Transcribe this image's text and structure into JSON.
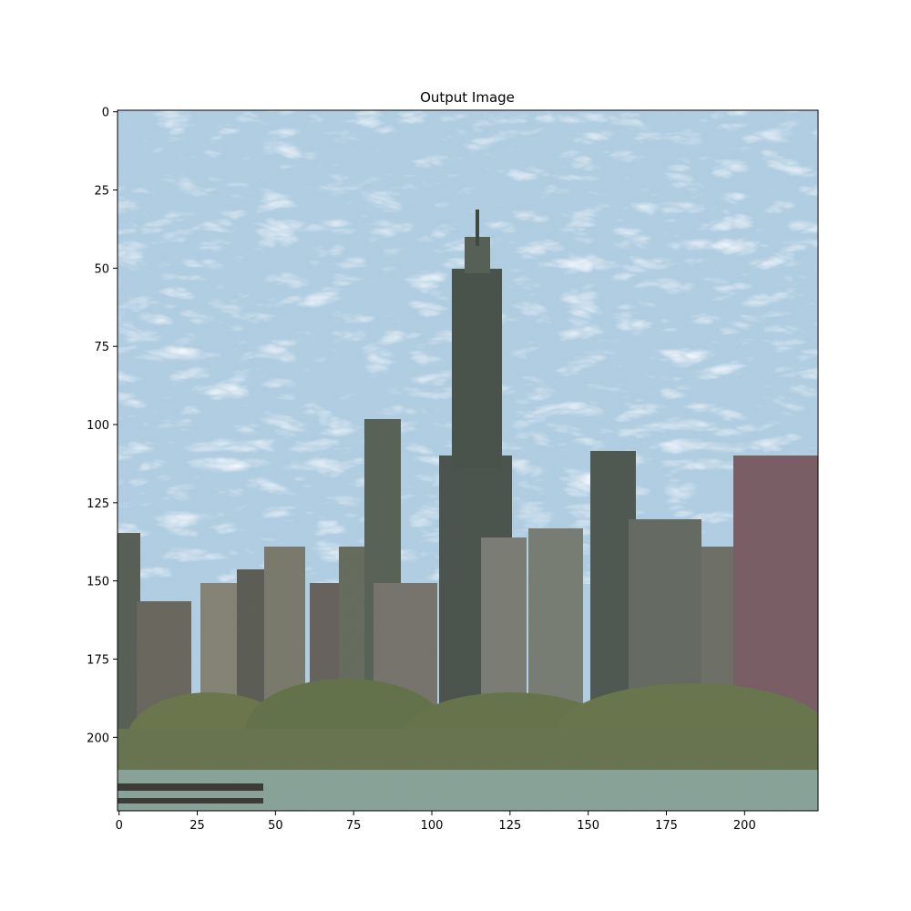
{
  "figure": {
    "title": "Output Image",
    "image_subject": "stylized-city-skyline",
    "pixel_extent": [
      224,
      224
    ]
  },
  "axes": {
    "x_ticks": [
      0,
      25,
      50,
      75,
      100,
      125,
      150,
      175,
      200
    ],
    "y_ticks": [
      0,
      25,
      50,
      75,
      100,
      125,
      150,
      175,
      200
    ],
    "x_limits": [
      -0.5,
      223.5
    ],
    "y_limits": [
      223.5,
      -0.5
    ]
  },
  "colors": {
    "sky_blue": "#9cc3e0",
    "sky_light": "#e6f0f5",
    "building_dark": "#3c4640",
    "building_mid": "#6b7568",
    "building_red": "#7a5058",
    "trees": "#5a6a3a",
    "water": "#8aa59a"
  }
}
